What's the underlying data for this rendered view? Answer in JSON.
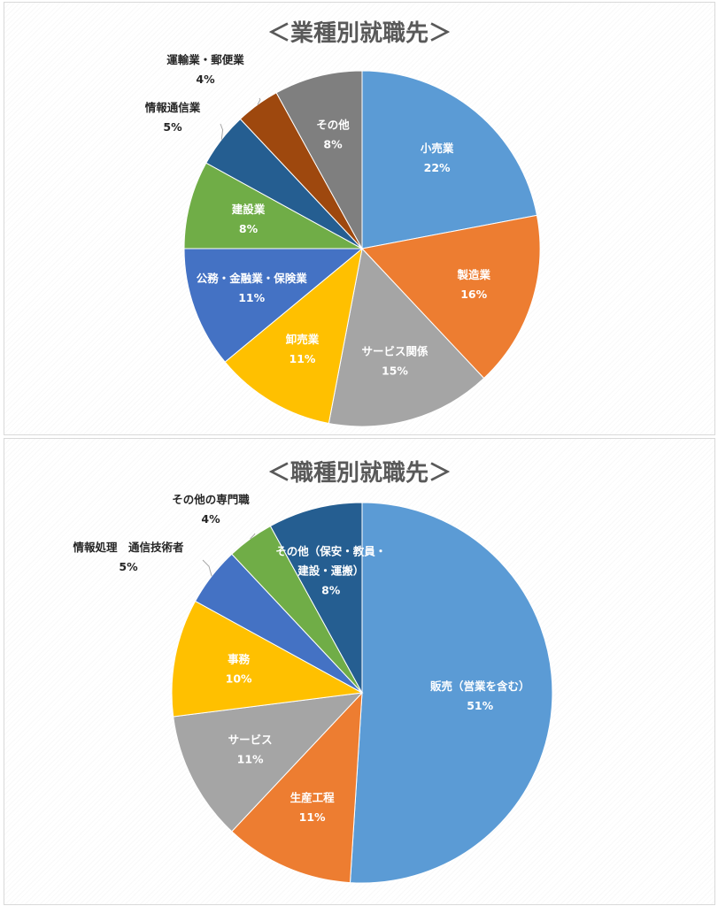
{
  "chart_data": [
    {
      "type": "pie",
      "title": "＜業種別就職先＞",
      "start_angle": 0,
      "slices": [
        {
          "name": "小売業",
          "value": 22,
          "label": "22%",
          "color": "#5B9BD5",
          "inside": true,
          "text_color": "#ffffff"
        },
        {
          "name": "製造業",
          "value": 16,
          "label": "16%",
          "color": "#ED7D31",
          "inside": true,
          "text_color": "#ffffff"
        },
        {
          "name": "サービス関係",
          "value": 15,
          "label": "15%",
          "color": "#A5A5A5",
          "inside": true,
          "text_color": "#ffffff"
        },
        {
          "name": "卸売業",
          "value": 11,
          "label": "11%",
          "color": "#FFC000",
          "inside": true,
          "text_color": "#ffffff"
        },
        {
          "name": "公務・金融業・保険業",
          "value": 11,
          "label": "11%",
          "color": "#4472C4",
          "inside": true,
          "text_color": "#ffffff"
        },
        {
          "name": "建設業",
          "value": 8,
          "label": "8%",
          "color": "#70AD47",
          "inside": true,
          "text_color": "#ffffff"
        },
        {
          "name": "情報通信業",
          "value": 5,
          "label": "5%",
          "color": "#255E91",
          "inside": false,
          "text_color": "#262626"
        },
        {
          "name": "運輸業・郵便業",
          "value": 4,
          "label": "4%",
          "color": "#9E480E",
          "inside": false,
          "text_color": "#262626"
        },
        {
          "name": "その他",
          "value": 8,
          "label": "8%",
          "color": "#7F7F7F",
          "inside": true,
          "text_color": "#ffffff"
        }
      ]
    },
    {
      "type": "pie",
      "title": "＜職種別就職先＞",
      "start_angle": 0,
      "slices": [
        {
          "name": [
            "販売（営業を含む）"
          ],
          "value": 51,
          "label": "51%",
          "color": "#5B9BD5",
          "inside": true,
          "text_color": "#ffffff"
        },
        {
          "name": [
            "生産工程"
          ],
          "value": 11,
          "label": "11%",
          "color": "#ED7D31",
          "inside": true,
          "text_color": "#ffffff"
        },
        {
          "name": [
            "サービス"
          ],
          "value": 11,
          "label": "11%",
          "color": "#A5A5A5",
          "inside": true,
          "text_color": "#ffffff"
        },
        {
          "name": [
            "事務"
          ],
          "value": 10,
          "label": "10%",
          "color": "#FFC000",
          "inside": true,
          "text_color": "#ffffff"
        },
        {
          "name": [
            "情報処理　通信技術者"
          ],
          "value": 5,
          "label": "5%",
          "color": "#4472C4",
          "inside": false,
          "text_color": "#262626"
        },
        {
          "name": [
            "その他の専門職"
          ],
          "value": 4,
          "label": "4%",
          "color": "#70AD47",
          "inside": false,
          "text_color": "#262626"
        },
        {
          "name": [
            "その他（保安・教員・",
            "建設・運搬）"
          ],
          "value": 8,
          "label": "8%",
          "color": "#255E91",
          "inside": true,
          "text_color": "#ffffff"
        }
      ]
    }
  ]
}
